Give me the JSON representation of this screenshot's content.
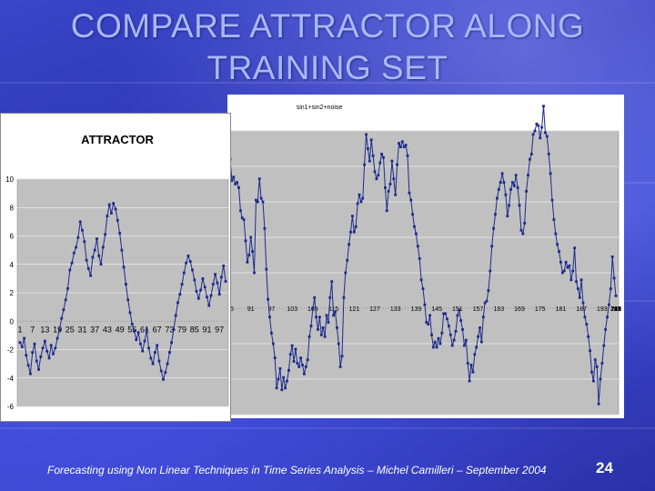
{
  "slide": {
    "title_line1": "COMPARE ATTRACTOR ALONG",
    "title_line2": "TRAINING SET",
    "footer": "Forecasting using Non Linear Techniques in Time Series Analysis – Michel Camilleri – September 2004",
    "page_number": "24"
  },
  "colors": {
    "series": "#1b2a8c",
    "plot_background": "#c0c0c0",
    "title_text": "#a9b8ff"
  },
  "chart_data": [
    {
      "type": "line",
      "title": "sin1+sin2+noise",
      "ylim": [
        -6,
        10
      ],
      "x_tick_labels": [
        "85",
        "91",
        "97",
        "103",
        "109",
        "115",
        "121",
        "127",
        "133",
        "139",
        "145",
        "151",
        "157",
        "163",
        "169",
        "175",
        "181",
        "187",
        "193",
        "199",
        "205",
        "211",
        "217",
        "223",
        "229",
        "235",
        "241"
      ],
      "series": [
        {
          "values": [
            8.4,
            7.2,
            7.4,
            7.0,
            7.1,
            6.8,
            5.5,
            5.1,
            5.0,
            3.8,
            2.6,
            3.0,
            4.0,
            3.2,
            2.0,
            6.1,
            6.0,
            7.3,
            6.2,
            6.0,
            4.5,
            2.2,
            0.5,
            -0.5,
            -1.4,
            -2.0,
            -2.8,
            -4.5,
            -4.0,
            -3.4,
            -4.6,
            -3.9,
            -4.5,
            -4.1,
            -3.5,
            -2.6,
            -2.1,
            -3.0,
            -2.3,
            -3.1,
            -3.3,
            -2.8,
            -3.2,
            -3.7,
            -3.3,
            -2.9,
            -1.6,
            -1.0,
            0.0,
            0.6,
            -0.5,
            -1.2,
            -0.5,
            -1.5,
            -1.1,
            -1.6,
            -0.4,
            -0.8,
            0.6,
            1.5,
            -0.4,
            -0.2,
            -1.1,
            -2.0,
            -3.3,
            -2.7,
            0.6,
            2.0,
            2.7,
            3.6,
            4.3,
            5.2,
            4.3,
            4.6,
            5.9,
            6.4,
            6.0,
            6.2,
            8.1,
            9.8,
            9.0,
            8.3,
            9.5,
            8.6,
            7.7,
            7.3,
            7.5,
            8.2,
            8.7,
            8.5,
            6.8,
            5.5,
            6.6,
            7.0,
            8.3,
            7.3,
            6.4,
            8.1,
            9.3,
            9.1,
            9.4,
            9.1,
            9.2,
            8.6,
            6.5,
            6.1,
            5.3,
            4.6,
            4.2,
            3.5,
            2.8,
            1.6,
            1.1,
            0.2,
            -0.8,
            -0.9,
            -0.4,
            -1.5,
            -2.2,
            -1.9,
            -2.2,
            -1.7,
            -2.0,
            -1.4,
            -0.3,
            -0.3,
            -0.6,
            -1.0,
            -1.5,
            -2.1,
            -1.8,
            -1.3,
            -0.4,
            -0.1,
            -0.7,
            -1.2,
            -2.1,
            -1.8,
            -3.1,
            -4.1,
            -3.2,
            -3.6,
            -2.6,
            -2.2,
            -1.6,
            -1.1,
            -1.9,
            -0.5,
            0.3,
            0.4,
            1.0,
            2.1,
            3.5,
            4.5,
            5.3,
            6.2,
            6.7,
            7.1,
            7.6,
            7.1,
            6.4,
            5.2,
            5.8,
            6.7,
            7.1,
            6.9,
            7.5,
            6.8,
            5.8,
            4.4,
            4.2,
            4.8,
            6.6,
            7.5,
            8.4,
            8.7,
            9.8,
            10.0,
            10.4,
            10.3,
            9.6,
            10.2,
            11.4,
            9.9,
            9.7,
            8.7,
            7.6,
            6.1,
            5.0,
            4.2,
            3.6,
            3.2,
            2.6,
            2.0,
            2.1,
            2.6,
            2.3,
            2.4,
            1.6,
            2.1,
            3.4,
            1.5,
            1.1,
            0.6,
            1.6,
            0.3,
            -0.5,
            -0.9,
            -1.6,
            -2.4,
            -3.6,
            -4.1,
            -2.9,
            -3.3,
            -5.4,
            -4.0,
            -3.1,
            -2.1,
            -1.2,
            -0.5,
            0.2,
            1.1,
            2.9,
            1.7,
            0.7
          ]
        }
      ]
    },
    {
      "type": "line",
      "title": "ATTRACTOR",
      "ylim": [
        -6,
        10
      ],
      "y_tick_labels": [
        "10",
        "8",
        "6",
        "4",
        "2",
        "0",
        "-2",
        "-4",
        "-6"
      ],
      "x_tick_labels": [
        "1",
        "7",
        "13",
        "19",
        "25",
        "31",
        "37",
        "43",
        "49",
        "55",
        "61",
        "67",
        "73",
        "79",
        "85",
        "91",
        "97"
      ],
      "series": [
        {
          "values": [
            -1.5,
            -1.8,
            -1.2,
            -2.4,
            -3.1,
            -3.7,
            -2.2,
            -1.6,
            -2.8,
            -3.4,
            -2.5,
            -1.9,
            -1.4,
            -2.1,
            -2.6,
            -1.7,
            -2.3,
            -1.9,
            -1.2,
            -0.6,
            0.2,
            0.8,
            1.5,
            2.3,
            3.6,
            4.1,
            4.8,
            5.2,
            5.9,
            7.0,
            6.4,
            5.6,
            4.3,
            3.7,
            3.2,
            4.5,
            5.0,
            5.8,
            4.6,
            4.0,
            5.2,
            6.1,
            7.4,
            8.2,
            7.6,
            8.3,
            7.9,
            7.1,
            6.2,
            5.0,
            3.8,
            2.6,
            1.5,
            0.6,
            -0.2,
            -0.7,
            -1.3,
            -0.8,
            -1.6,
            -2.1,
            -1.4,
            -0.6,
            -1.9,
            -2.6,
            -3.0,
            -2.2,
            -1.7,
            -2.8,
            -3.5,
            -4.1,
            -3.6,
            -3.0,
            -2.2,
            -1.5,
            -0.6,
            0.4,
            1.3,
            1.9,
            2.6,
            3.4,
            4.1,
            4.6,
            4.2,
            3.6,
            2.9,
            2.1,
            1.6,
            2.2,
            3.0,
            2.4,
            1.7,
            1.1,
            1.8,
            2.6,
            3.3,
            2.7,
            1.9,
            3.1,
            3.9,
            2.8
          ]
        }
      ]
    }
  ]
}
